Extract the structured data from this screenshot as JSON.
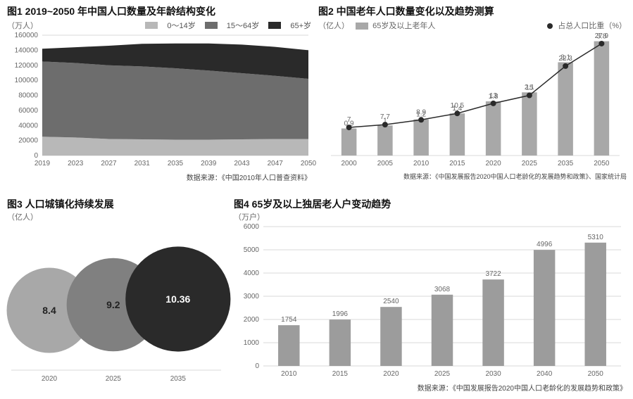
{
  "colors": {
    "light": "#b8b8b8",
    "mid": "#6d6d6d",
    "dark": "#2a2a2a",
    "grid": "#d8d8d8",
    "bg": "#ffffff",
    "text": "#111111",
    "subtext": "#666666",
    "bar": "#a8a8a8",
    "bar4": "#9c9c9c"
  },
  "chart1": {
    "title": "图1 2019~2050 年中国人口数量及年龄结构变化",
    "unit": "（万人）",
    "legend_items": [
      "0～14岁",
      "15～64岁",
      "65+岁"
    ],
    "legend_colors": [
      "#b8b8b8",
      "#6d6d6d",
      "#2a2a2a"
    ],
    "source": "数据来源：《中国2010年人口普查资料》",
    "ymax": 160000,
    "ytick_step": 20000,
    "xlabels": [
      "2019",
      "2023",
      "2027",
      "2031",
      "2035",
      "2039",
      "2043",
      "2047",
      "2050"
    ],
    "type": "area",
    "series": {
      "age0_14": [
        25000,
        24000,
        22000,
        21500,
        21000,
        21000,
        21500,
        22000,
        22000
      ],
      "age15_64": [
        100000,
        99000,
        98000,
        97000,
        95000,
        92000,
        88000,
        84000,
        80000
      ],
      "age65": [
        17000,
        21000,
        26000,
        30000,
        33000,
        36000,
        38000,
        38500,
        38000
      ]
    }
  },
  "chart2": {
    "title": "图2 中国老年人口数量变化以及趋势测算",
    "unit": "（亿人）",
    "legend_bar": "65岁及以上老年人",
    "legend_line": "占总人口比重（%）",
    "source": "数据来源：《中国发展报告2020中国人口老龄化的发展趋势和政策》、国家统计局",
    "categories": [
      "2000",
      "2005",
      "2010",
      "2015",
      "2020",
      "2025",
      "2035",
      "2050"
    ],
    "bars": [
      0.9,
      1.0,
      1.2,
      1.4,
      1.8,
      2.1,
      3.1,
      3.8
    ],
    "line": [
      7,
      7.7,
      8.9,
      10.5,
      13,
      15,
      22.3,
      27.9
    ],
    "bar_ymax": 4.0,
    "line_ymax": 30,
    "bar_color": "#a8a8a8",
    "type": "bar+line"
  },
  "chart3": {
    "title": "图3 人口城镇化持续发展",
    "unit": "（亿人）",
    "categories": [
      "2020",
      "2025",
      "2035"
    ],
    "values": [
      8.4,
      9.2,
      10.36
    ],
    "colors": [
      "#a8a8a8",
      "#808080",
      "#2a2a2a"
    ],
    "type": "bubble"
  },
  "chart4": {
    "title": "图4 65岁及以上独居老人户变动趋势",
    "unit": "（万户）",
    "categories": [
      "2010",
      "2015",
      "2020",
      "2025",
      "2030",
      "2040",
      "2050"
    ],
    "values": [
      1754,
      1996,
      2540,
      3068,
      3722,
      4996,
      5310
    ],
    "ymax": 6000,
    "ytick_step": 1000,
    "bar_color": "#9c9c9c",
    "source": "数据来源：《中国发展报告2020中国人口老龄化的发展趋势和政策》",
    "type": "bar"
  }
}
